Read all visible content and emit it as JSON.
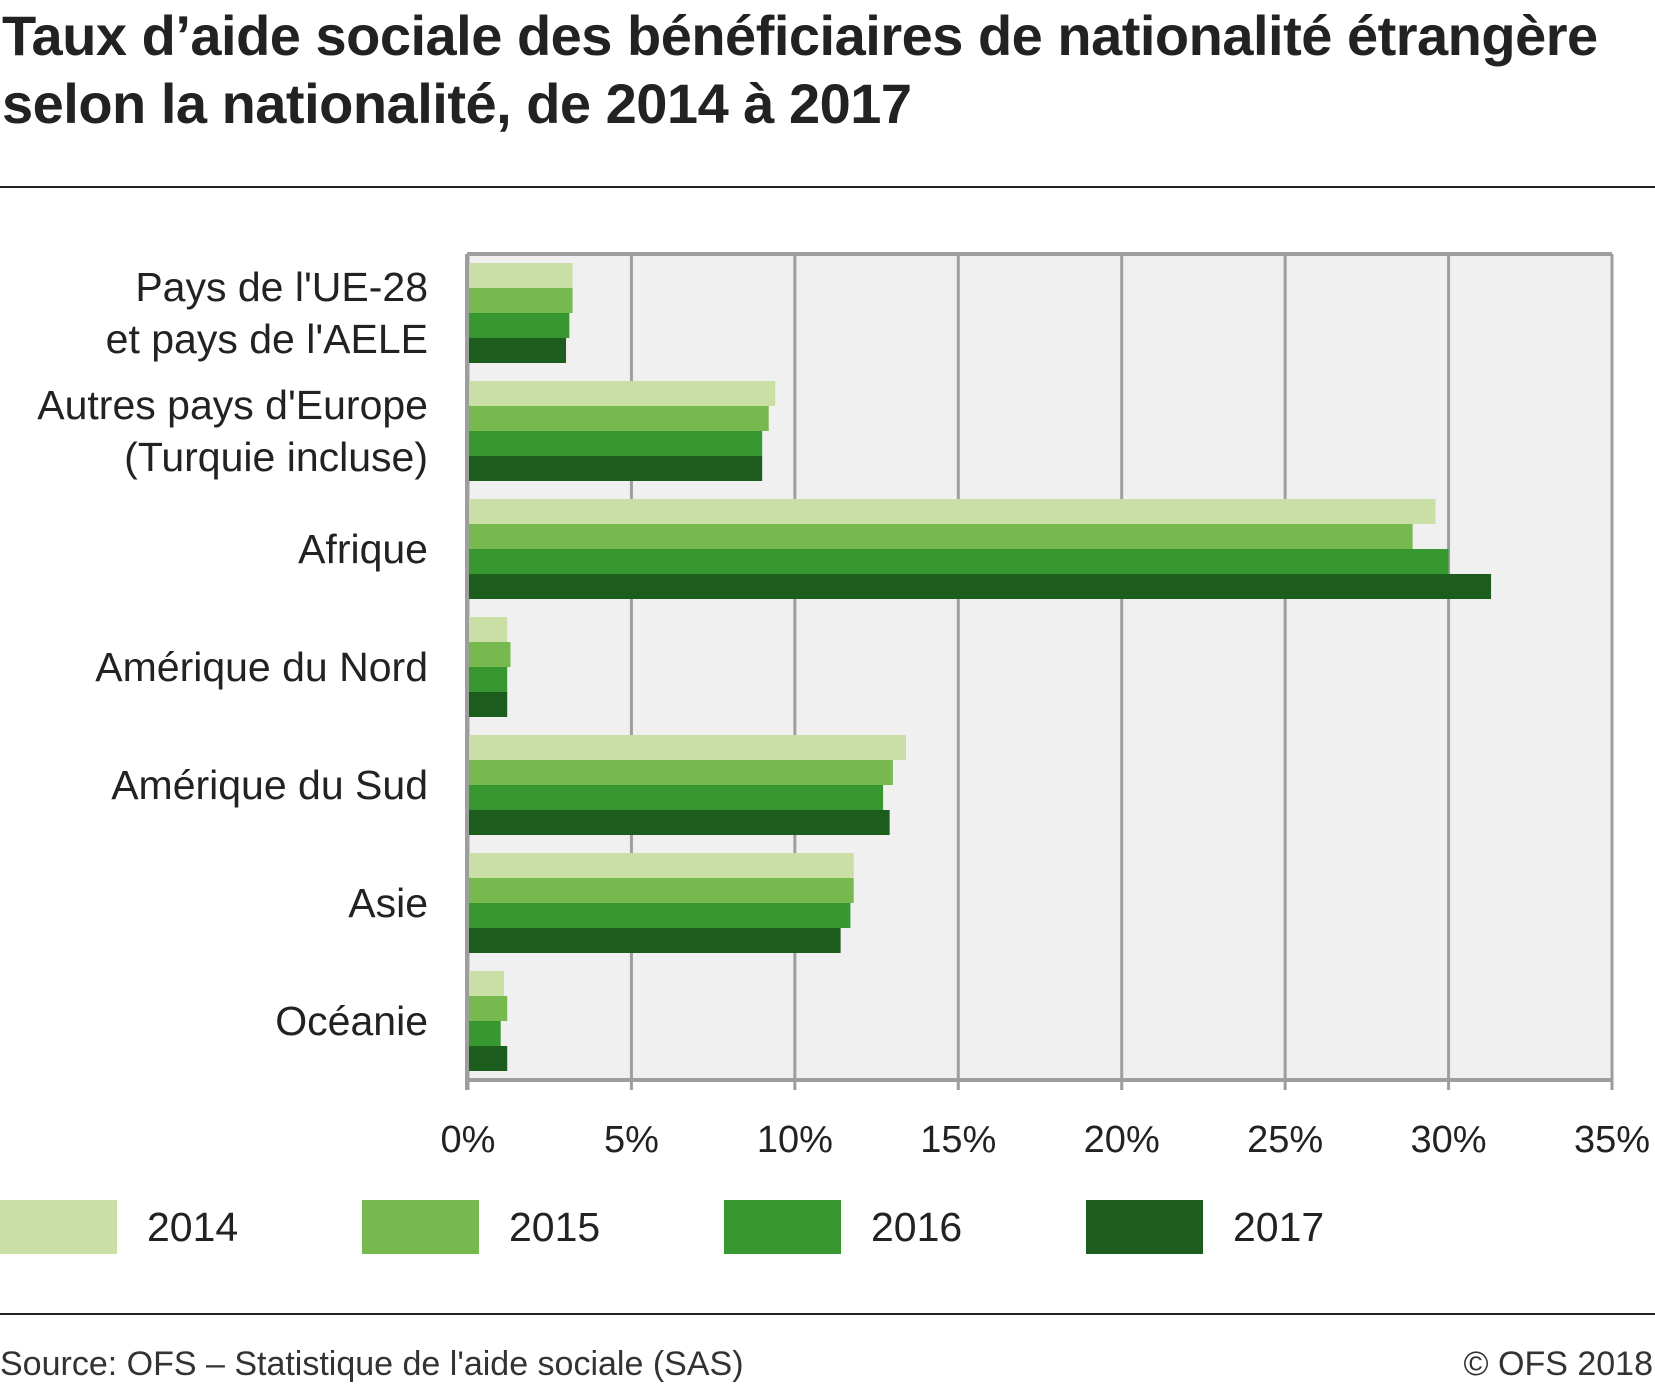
{
  "title": "Taux d’aide sociale des bénéficiaires de nationalité étrangère selon la nationalité, de 2014 à 2017",
  "source": "Source: OFS – Statistique de l'aide sociale (SAS)",
  "copyright": "© OFS 2018",
  "chart_data": {
    "type": "bar",
    "orientation": "horizontal",
    "title": "Taux d’aide sociale des bénéficiaires de nationalité étrangère selon la nationalité, de 2014 à 2017",
    "xlabel": "",
    "ylabel": "",
    "xlim": [
      0,
      35
    ],
    "xticks": [
      0,
      5,
      10,
      15,
      20,
      25,
      30,
      35
    ],
    "xtick_labels": [
      "0%",
      "5%",
      "10%",
      "15%",
      "20%",
      "25%",
      "30%",
      "35%"
    ],
    "grid": true,
    "legend_position": "bottom",
    "categories": [
      [
        "Pays de l'UE-28",
        "et pays de l'AELE"
      ],
      [
        "Autres pays d'Europe",
        "(Turquie incluse)"
      ],
      [
        "Afrique"
      ],
      [
        "Amérique du Nord"
      ],
      [
        "Amérique du Sud"
      ],
      [
        "Asie"
      ],
      [
        "Océanie"
      ]
    ],
    "series": [
      {
        "name": "2014",
        "color": "#cadfa6",
        "values": [
          3.2,
          9.4,
          29.6,
          1.2,
          13.4,
          11.8,
          1.1
        ]
      },
      {
        "name": "2015",
        "color": "#78b94f",
        "values": [
          3.2,
          9.2,
          28.9,
          1.3,
          13.0,
          11.8,
          1.2
        ]
      },
      {
        "name": "2016",
        "color": "#379831",
        "values": [
          3.1,
          9.0,
          30.0,
          1.2,
          12.7,
          11.7,
          1.0
        ]
      },
      {
        "name": "2017",
        "color": "#1c5c1c",
        "values": [
          3.0,
          9.0,
          31.3,
          1.2,
          12.9,
          11.4,
          1.2
        ]
      }
    ]
  }
}
